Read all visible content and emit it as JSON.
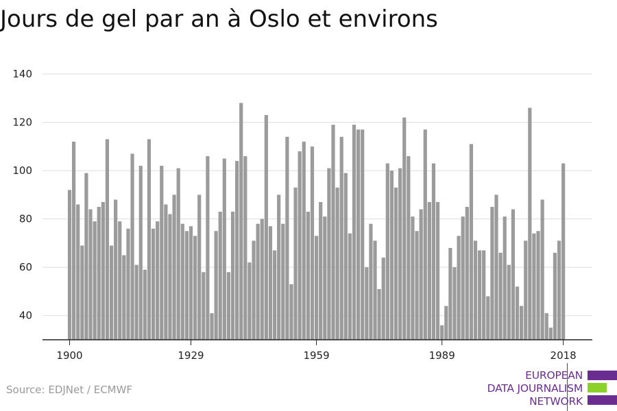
{
  "title": "Jours de gel par an à Oslo et environs",
  "source": "Source: EDJNet / ECMWF",
  "logo": {
    "lines": [
      "EUROPEAN",
      "DATA JOURNALISM",
      "NETWORK"
    ],
    "colors": {
      "purple": "#6b2c91",
      "green": "#8cd12a"
    }
  },
  "chart_data": {
    "type": "bar",
    "title": "Jours de gel par an à Oslo et environs",
    "xlabel": "",
    "ylabel": "",
    "x_start": 1900,
    "x_ticks": [
      1900,
      1929,
      1959,
      1989,
      2018
    ],
    "y_ticks": [
      40,
      60,
      80,
      100,
      120,
      140
    ],
    "ylim": [
      30,
      140
    ],
    "grid": true,
    "bar_color": "#9b9b9b",
    "values": [
      92,
      112,
      86,
      69,
      99,
      84,
      79,
      85,
      87,
      113,
      69,
      88,
      79,
      65,
      76,
      107,
      61,
      102,
      59,
      113,
      76,
      79,
      102,
      86,
      82,
      90,
      101,
      78,
      75,
      77,
      73,
      90,
      58,
      106,
      41,
      75,
      83,
      105,
      58,
      83,
      104,
      128,
      106,
      62,
      71,
      78,
      80,
      123,
      77,
      67,
      90,
      78,
      114,
      53,
      93,
      108,
      112,
      83,
      110,
      73,
      87,
      81,
      101,
      119,
      93,
      114,
      99,
      74,
      119,
      117,
      117,
      60,
      78,
      71,
      51,
      64,
      103,
      100,
      93,
      101,
      122,
      106,
      81,
      75,
      84,
      117,
      87,
      103,
      87,
      36,
      44,
      68,
      60,
      73,
      81,
      85,
      111,
      71,
      67,
      67,
      48,
      85,
      90,
      66,
      81,
      61,
      84,
      52,
      44,
      71,
      126,
      74,
      75,
      88,
      41,
      35,
      66,
      71,
      103
    ]
  }
}
